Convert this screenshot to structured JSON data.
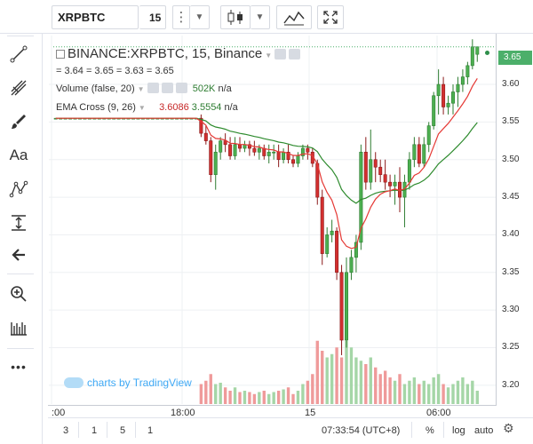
{
  "toolbar": {
    "symbol": "XRPBTC",
    "interval": "15",
    "more_icon": "more-vertical-icon",
    "caret": "▼"
  },
  "left_toolbar": {
    "tools": [
      "crosshair-icon",
      "trendline-icon",
      "pitchfork-icon",
      "brush-icon",
      "text-icon",
      "pattern-icon",
      "measure-icon",
      "arrow-left-icon",
      "zoom-icon",
      "ruler-icon",
      "more-icon"
    ],
    "text_tool_label": "Aa",
    "more_label": "•••"
  },
  "legend": {
    "title": "BINANCE:XRPBTC, 15, Binance",
    "ohlc": "= 3.64 = 3.65 = 3.63 = 3.65",
    "volume_label": "Volume (false, 20)",
    "volume_value": "502K",
    "volume_extra": "n/a",
    "ema_label": "EMA Cross (9, 26)",
    "ema_fast": "3.6086",
    "ema_slow": "3.5554",
    "ema_extra": "n/a"
  },
  "watermark": "charts by TradingView",
  "price_axis": {
    "labels": [
      "3.60",
      "3.55",
      "3.50",
      "3.45",
      "3.40",
      "3.35",
      "3.30",
      "3.25",
      "3.20"
    ],
    "last_price": "3.65"
  },
  "time_axis": {
    "labels": [
      ":00",
      "18:00",
      "15",
      "06:00"
    ]
  },
  "bottom_bar": {
    "ranges": [
      "3",
      "1",
      "5",
      "1"
    ],
    "clock": "07:33:54 (UTC+8)",
    "percent": "%",
    "log": "log",
    "auto": "auto"
  },
  "colors": {
    "up": "#4caf50",
    "down": "#d32f2f",
    "ema_fast": "#e53935",
    "ema_slow": "#2e8b2e",
    "volume_up": "#a5d6a7",
    "volume_down": "#ef9a9a",
    "accent": "#2196f3"
  },
  "chart_data": {
    "type": "candlestick",
    "title": "BINANCE:XRPBTC, 15, Binance",
    "ylim": [
      3.175,
      3.665
    ],
    "price_ticks": [
      3.6,
      3.55,
      3.5,
      3.45,
      3.4,
      3.35,
      3.3,
      3.25,
      3.2
    ],
    "time_ticks": [
      ":00",
      "18:00",
      "15",
      "06:00"
    ],
    "candles": [
      [
        3.555,
        3.555,
        3.555,
        3.555
      ],
      [
        3.555,
        3.555,
        3.555,
        3.555
      ],
      [
        3.555,
        3.555,
        3.555,
        3.555
      ],
      [
        3.555,
        3.555,
        3.555,
        3.555
      ],
      [
        3.555,
        3.555,
        3.555,
        3.555
      ],
      [
        3.555,
        3.555,
        3.555,
        3.555
      ],
      [
        3.555,
        3.555,
        3.555,
        3.555
      ],
      [
        3.555,
        3.555,
        3.555,
        3.555
      ],
      [
        3.555,
        3.555,
        3.555,
        3.555
      ],
      [
        3.555,
        3.555,
        3.555,
        3.555
      ],
      [
        3.555,
        3.555,
        3.555,
        3.555
      ],
      [
        3.555,
        3.555,
        3.555,
        3.555
      ],
      [
        3.555,
        3.555,
        3.555,
        3.555
      ],
      [
        3.555,
        3.555,
        3.555,
        3.555
      ],
      [
        3.555,
        3.555,
        3.555,
        3.555
      ],
      [
        3.555,
        3.555,
        3.555,
        3.555
      ],
      [
        3.555,
        3.555,
        3.555,
        3.555
      ],
      [
        3.555,
        3.555,
        3.555,
        3.555
      ],
      [
        3.555,
        3.555,
        3.555,
        3.555
      ],
      [
        3.555,
        3.555,
        3.555,
        3.555
      ],
      [
        3.555,
        3.555,
        3.555,
        3.555
      ],
      [
        3.555,
        3.555,
        3.555,
        3.555
      ],
      [
        3.555,
        3.555,
        3.555,
        3.555
      ],
      [
        3.555,
        3.555,
        3.555,
        3.555
      ],
      [
        3.555,
        3.555,
        3.555,
        3.555
      ],
      [
        3.555,
        3.555,
        3.555,
        3.555
      ],
      [
        3.555,
        3.555,
        3.555,
        3.555
      ],
      [
        3.555,
        3.555,
        3.555,
        3.555
      ],
      [
        3.555,
        3.555,
        3.555,
        3.555
      ],
      [
        3.555,
        3.555,
        3.555,
        3.555
      ],
      [
        3.555,
        3.56,
        3.53,
        3.535
      ],
      [
        3.535,
        3.545,
        3.52,
        3.525
      ],
      [
        3.525,
        3.53,
        3.47,
        3.48
      ],
      [
        3.48,
        3.52,
        3.46,
        3.51
      ],
      [
        3.51,
        3.53,
        3.5,
        3.525
      ],
      [
        3.525,
        3.535,
        3.51,
        3.52
      ],
      [
        3.52,
        3.53,
        3.5,
        3.505
      ],
      [
        3.505,
        3.53,
        3.5,
        3.52
      ],
      [
        3.52,
        3.53,
        3.51,
        3.515
      ],
      [
        3.515,
        3.525,
        3.51,
        3.52
      ],
      [
        3.52,
        3.525,
        3.505,
        3.515
      ],
      [
        3.515,
        3.525,
        3.505,
        3.51
      ],
      [
        3.51,
        3.52,
        3.5,
        3.515
      ],
      [
        3.515,
        3.52,
        3.5,
        3.505
      ],
      [
        3.505,
        3.52,
        3.495,
        3.51
      ],
      [
        3.51,
        3.52,
        3.5,
        3.51
      ],
      [
        3.51,
        3.52,
        3.49,
        3.5
      ],
      [
        3.5,
        3.515,
        3.495,
        3.51
      ],
      [
        3.51,
        3.52,
        3.495,
        3.5
      ],
      [
        3.5,
        3.505,
        3.49,
        3.495
      ],
      [
        3.495,
        3.51,
        3.49,
        3.505
      ],
      [
        3.505,
        3.52,
        3.5,
        3.515
      ],
      [
        3.515,
        3.52,
        3.5,
        3.51
      ],
      [
        3.51,
        3.515,
        3.49,
        3.495
      ],
      [
        3.495,
        3.5,
        3.44,
        3.45
      ],
      [
        3.45,
        3.46,
        3.36,
        3.375
      ],
      [
        3.375,
        3.41,
        3.37,
        3.4
      ],
      [
        3.4,
        3.42,
        3.39,
        3.405
      ],
      [
        3.405,
        3.41,
        3.34,
        3.35
      ],
      [
        3.35,
        3.36,
        3.24,
        3.26
      ],
      [
        3.26,
        3.37,
        3.25,
        3.35
      ],
      [
        3.35,
        3.38,
        3.34,
        3.37
      ],
      [
        3.37,
        3.4,
        3.35,
        3.39
      ],
      [
        3.39,
        3.52,
        3.38,
        3.51
      ],
      [
        3.51,
        3.53,
        3.46,
        3.47
      ],
      [
        3.47,
        3.54,
        3.46,
        3.5
      ],
      [
        3.5,
        3.51,
        3.47,
        3.49
      ],
      [
        3.49,
        3.5,
        3.47,
        3.48
      ],
      [
        3.48,
        3.5,
        3.46,
        3.47
      ],
      [
        3.47,
        3.48,
        3.45,
        3.465
      ],
      [
        3.465,
        3.48,
        3.44,
        3.47
      ],
      [
        3.47,
        3.49,
        3.43,
        3.45
      ],
      [
        3.45,
        3.48,
        3.41,
        3.47
      ],
      [
        3.47,
        3.51,
        3.46,
        3.5
      ],
      [
        3.5,
        3.53,
        3.49,
        3.52
      ],
      [
        3.52,
        3.53,
        3.49,
        3.495
      ],
      [
        3.495,
        3.53,
        3.49,
        3.52
      ],
      [
        3.52,
        3.55,
        3.51,
        3.545
      ],
      [
        3.545,
        3.59,
        3.54,
        3.585
      ],
      [
        3.585,
        3.62,
        3.56,
        3.6
      ],
      [
        3.6,
        3.61,
        3.56,
        3.57
      ],
      [
        3.57,
        3.585,
        3.56,
        3.575
      ],
      [
        3.575,
        3.6,
        3.56,
        3.59
      ],
      [
        3.59,
        3.61,
        3.57,
        3.6
      ],
      [
        3.6,
        3.62,
        3.59,
        3.61
      ],
      [
        3.61,
        3.63,
        3.6,
        3.625
      ],
      [
        3.625,
        3.66,
        3.62,
        3.65
      ],
      [
        3.64,
        3.65,
        3.63,
        3.65
      ]
    ],
    "volume": [
      0,
      0,
      0,
      0,
      0,
      0,
      0,
      0,
      0,
      0,
      0,
      0,
      0,
      0,
      0,
      0,
      0,
      0,
      0,
      0,
      0,
      0,
      0,
      0,
      0,
      0,
      0,
      0,
      0,
      0,
      0.3,
      0.35,
      0.45,
      0.3,
      0.32,
      0.25,
      0.2,
      0.25,
      0.18,
      0.2,
      0.18,
      0.15,
      0.18,
      0.2,
      0.15,
      0.18,
      0.2,
      0.22,
      0.25,
      0.15,
      0.2,
      0.3,
      0.35,
      0.45,
      0.95,
      0.8,
      0.7,
      0.75,
      0.85,
      0.7,
      0.95,
      0.85,
      0.7,
      0.65,
      0.6,
      0.7,
      0.55,
      0.45,
      0.5,
      0.4,
      0.35,
      0.45,
      0.3,
      0.35,
      0.4,
      0.3,
      0.35,
      0.3,
      0.4,
      0.45,
      0.3,
      0.25,
      0.3,
      0.35,
      0.4,
      0.3,
      0.35,
      0.2
    ]
  }
}
